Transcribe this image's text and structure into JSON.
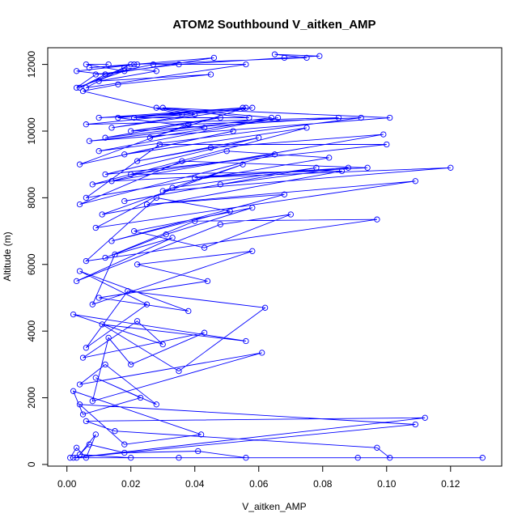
{
  "chart_data": {
    "type": "line",
    "title": "ATOM2 Southbound V_aitken_AMP",
    "xlabel": "V_aitken_AMP",
    "ylabel": "Altitude (m)",
    "xlim": [
      -0.006,
      0.136
    ],
    "ylim": [
      -50,
      12500
    ],
    "x_ticks": [
      "0.00",
      "0.02",
      "0.04",
      "0.06",
      "0.08",
      "0.10",
      "0.12"
    ],
    "x_tick_values": [
      0.0,
      0.02,
      0.04,
      0.06,
      0.08,
      0.1,
      0.12
    ],
    "y_ticks": [
      "0",
      "2000",
      "4000",
      "6000",
      "8000",
      "10000",
      "12000"
    ],
    "y_tick_values": [
      0,
      2000,
      4000,
      6000,
      8000,
      10000,
      12000
    ],
    "grid": false,
    "color": "#0000ff",
    "series": [
      {
        "x": [
          0.001,
          0.003,
          0.006,
          0.009,
          0.004,
          0.02,
          0.035,
          0.056,
          0.041,
          0.018,
          0.007,
          0.003,
          0.091,
          0.13,
          0.101,
          0.097,
          0.015,
          0.006,
          0.112,
          0.002,
          0.109,
          0.004,
          0.018,
          0.042,
          0.002,
          0.005,
          0.023,
          0.009,
          0.028,
          0.012,
          0.004,
          0.061,
          0.008,
          0.013,
          0.02,
          0.043,
          0.005,
          0.022,
          0.03,
          0.002,
          0.056,
          0.011,
          0.035,
          0.062,
          0.019,
          0.006,
          0.025,
          0.004,
          0.038,
          0.01,
          0.044,
          0.022,
          0.058,
          0.008,
          0.015,
          0.033,
          0.003,
          0.048,
          0.07,
          0.043,
          0.021,
          0.058,
          0.031,
          0.012,
          0.04,
          0.097,
          0.006,
          0.028,
          0.051,
          0.014,
          0.068,
          0.025,
          0.109,
          0.009,
          0.033,
          0.078,
          0.018,
          0.048,
          0.088,
          0.04,
          0.12,
          0.03,
          0.055,
          0.011,
          0.086,
          0.02,
          0.065,
          0.004,
          0.036,
          0.094,
          0.014,
          0.05,
          0.082,
          0.006,
          0.029,
          0.1,
          0.012,
          0.06,
          0.022,
          0.045,
          0.099,
          0.008,
          0.075,
          0.018,
          0.052,
          0.004,
          0.038,
          0.092,
          0.01,
          0.066,
          0.026,
          0.056,
          0.016,
          0.043,
          0.007,
          0.101,
          0.03,
          0.064,
          0.012,
          0.048,
          0.02,
          0.085,
          0.006,
          0.058,
          0.014,
          0.04,
          0.028,
          0.057,
          0.021,
          0.055,
          0.01,
          0.036,
          0.005,
          0.016,
          0.045,
          0.01,
          0.028,
          0.018,
          0.006,
          0.056,
          0.027,
          0.012,
          0.003,
          0.022,
          0.007,
          0.02,
          0.004,
          0.012,
          0.046,
          0.021,
          0.075,
          0.065,
          0.079,
          0.068,
          0.035,
          0.009,
          0.003,
          0.018,
          0.006,
          0.013
        ],
        "y": [
          200,
          500,
          200,
          900,
          300,
          200,
          200,
          200,
          400,
          350,
          600,
          200,
          200,
          200,
          200,
          500,
          1000,
          1300,
          1400,
          200,
          1200,
          1800,
          600,
          900,
          2200,
          1500,
          2000,
          2600,
          1800,
          3000,
          2400,
          3350,
          1900,
          3800,
          3000,
          3950,
          3200,
          4300,
          3600,
          4500,
          3700,
          4200,
          2800,
          4700,
          5200,
          3500,
          4800,
          5800,
          4600,
          5000,
          5500,
          6000,
          6400,
          4800,
          6300,
          6800,
          5500,
          7200,
          7500,
          6500,
          7000,
          7700,
          6900,
          6200,
          7300,
          7350,
          6100,
          8000,
          7600,
          6700,
          8100,
          7800,
          8500,
          7100,
          8300,
          8900,
          7900,
          8400,
          8900,
          8600,
          8900,
          8200,
          9000,
          7500,
          8800,
          8700,
          9300,
          7800,
          9100,
          8900,
          8500,
          9400,
          9200,
          8000,
          9600,
          9600,
          8700,
          9800,
          9100,
          9500,
          9900,
          8400,
          10100,
          9300,
          10000,
          9000,
          10200,
          10400,
          9400,
          10400,
          9800,
          10700,
          10400,
          10100,
          9700,
          10400,
          10700,
          10400,
          9800,
          10400,
          10000,
          10400,
          10200,
          10700,
          10100,
          10500,
          10700,
          10400,
          10400,
          10700,
          10400,
          10500,
          11200,
          11400,
          11700,
          11500,
          11800,
          11900,
          11300,
          12000,
          12000,
          11700,
          11800,
          12000,
          11900,
          12000,
          11300,
          11700,
          12200,
          12000,
          12200,
          12300,
          12250,
          12200,
          12000,
          11700,
          11300,
          11800,
          12000,
          12000
        ]
      }
    ]
  }
}
